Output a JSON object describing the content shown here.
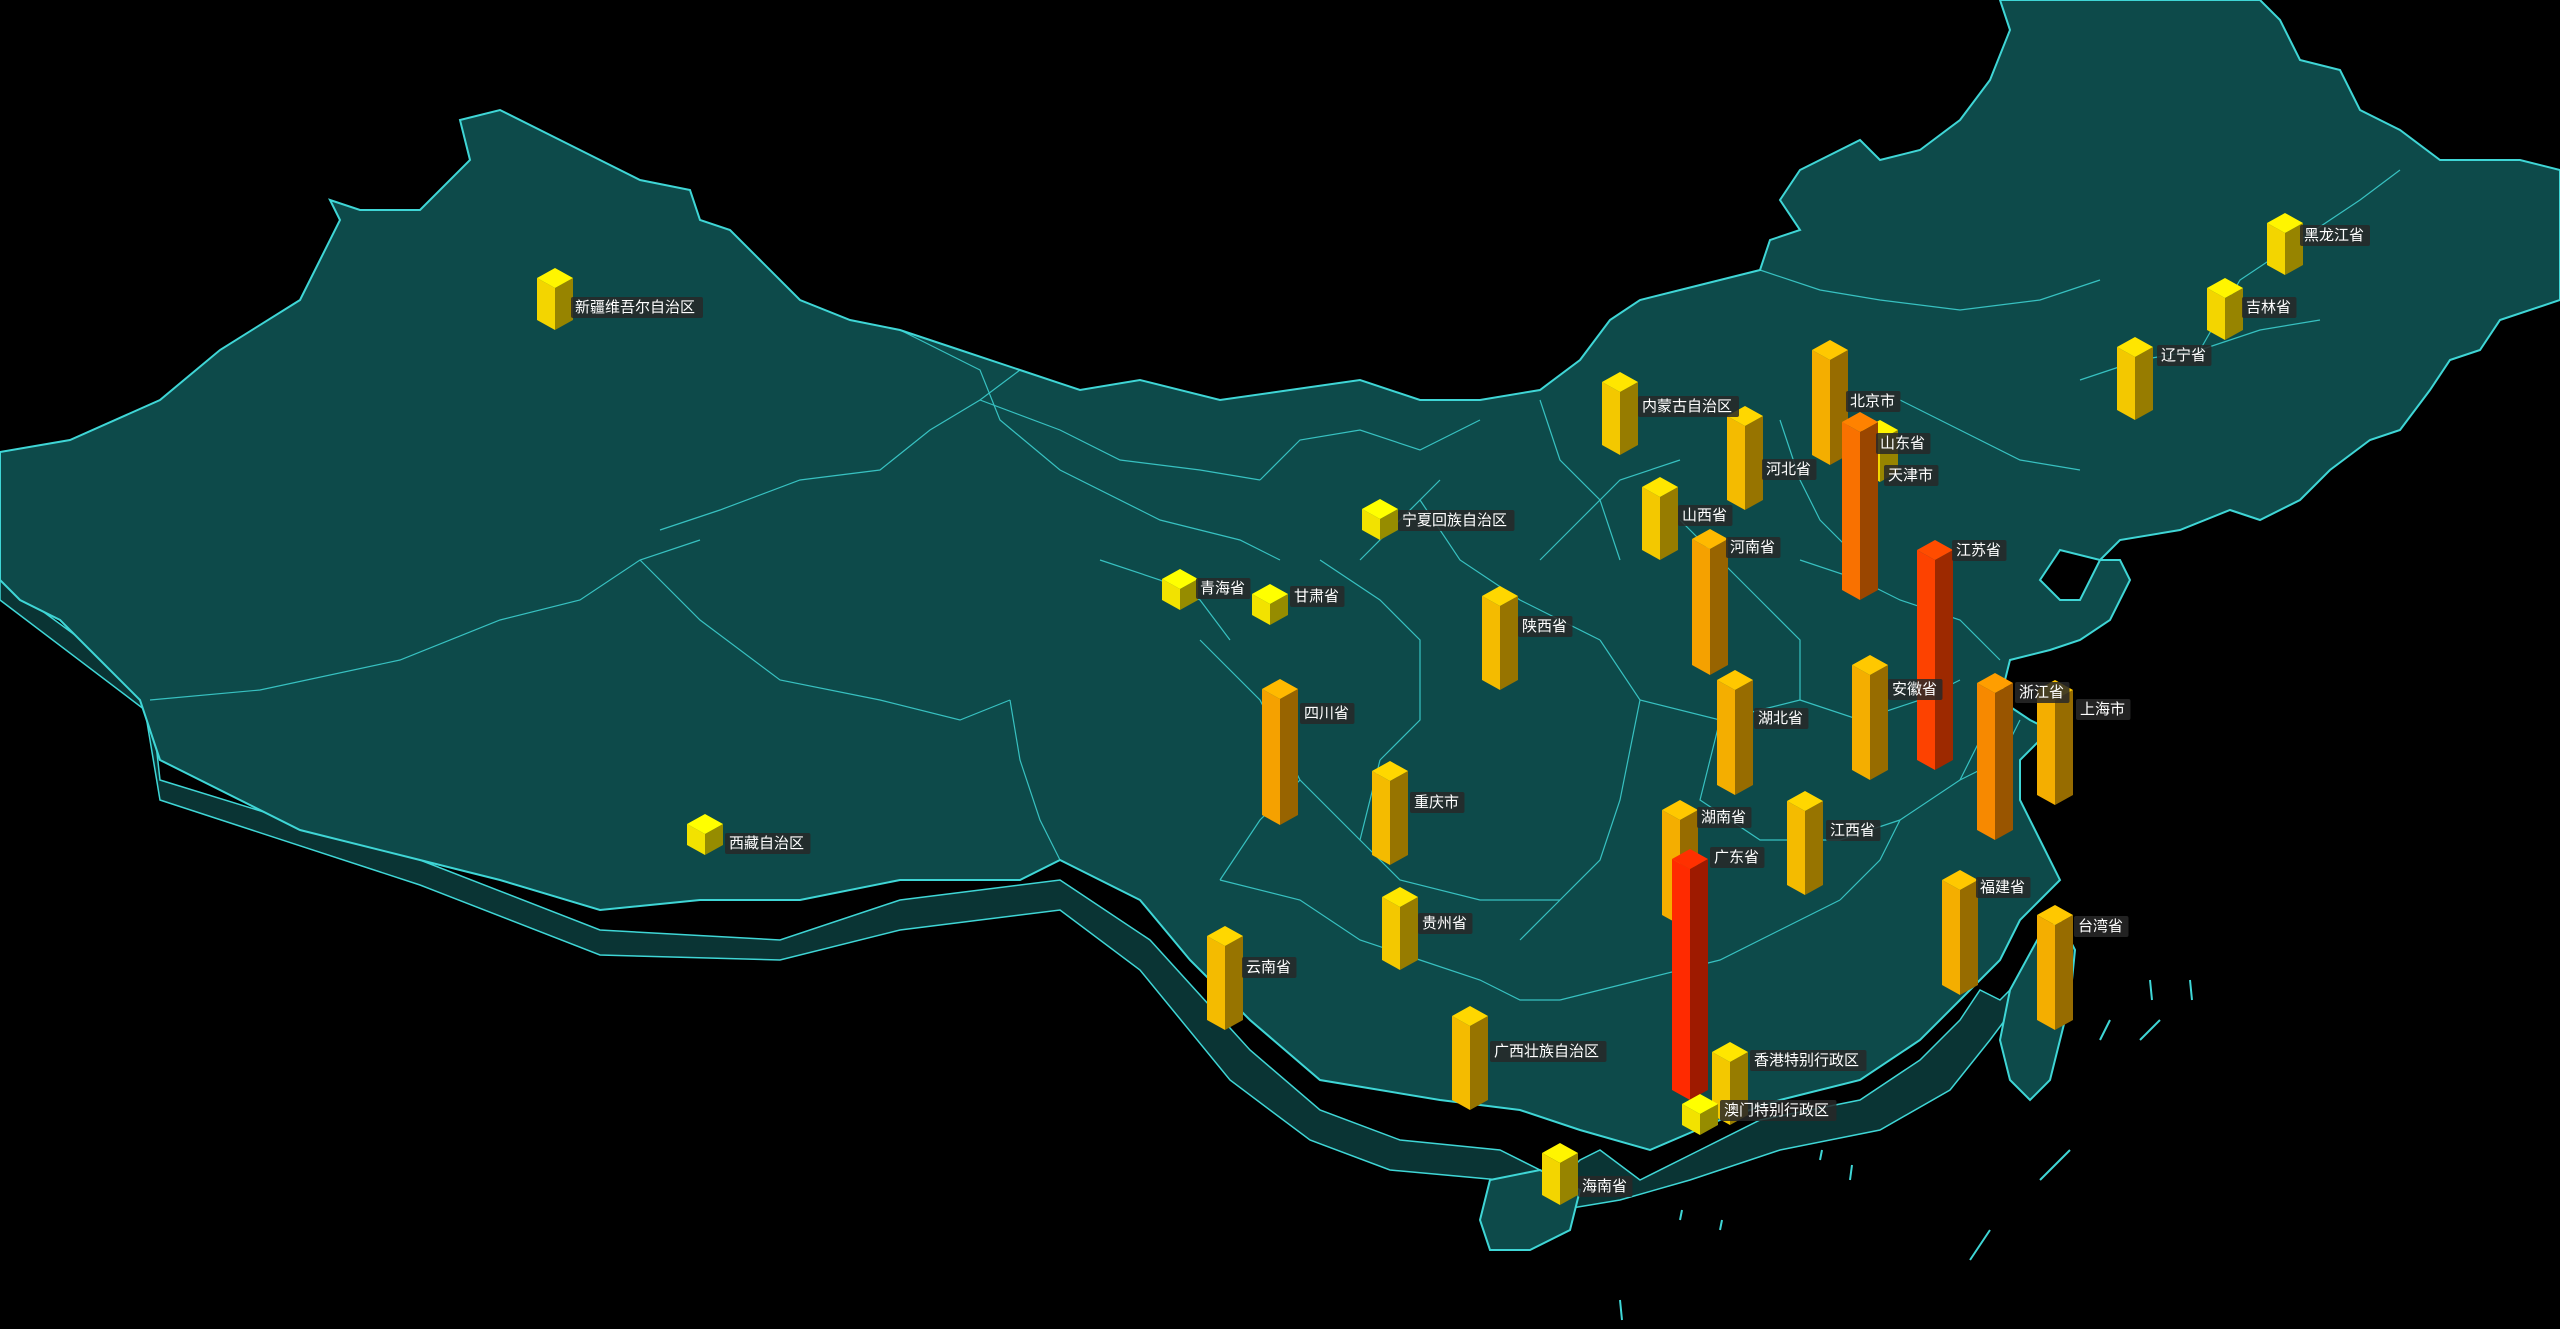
{
  "colors": {
    "background": "#000000",
    "land_fill": "#0d4a4a",
    "land_side": "#0a3434",
    "border": "#3fd6d6",
    "bar_low": "#f2e200",
    "bar_mid": "#f5a100",
    "bar_high": "#ff2a00"
  },
  "chart_data": {
    "type": "bar3d-map",
    "provinces": [
      {
        "name": "新疆维吾尔自治区",
        "value": 2
      },
      {
        "name": "西藏自治区",
        "value": 1
      },
      {
        "name": "青海省",
        "value": 1
      },
      {
        "name": "甘肃省",
        "value": 1
      },
      {
        "name": "宁夏回族自治区",
        "value": 1
      },
      {
        "name": "内蒙古自治区",
        "value": 3
      },
      {
        "name": "黑龙江省",
        "value": 2
      },
      {
        "name": "吉林省",
        "value": 2
      },
      {
        "name": "辽宁省",
        "value": 3
      },
      {
        "name": "北京市",
        "value": 5
      },
      {
        "name": "天津市",
        "value": 2
      },
      {
        "name": "河北省",
        "value": 4
      },
      {
        "name": "山西省",
        "value": 3
      },
      {
        "name": "山东省",
        "value": 8
      },
      {
        "name": "河南省",
        "value": 6
      },
      {
        "name": "陕西省",
        "value": 4
      },
      {
        "name": "四川省",
        "value": 6
      },
      {
        "name": "重庆市",
        "value": 4
      },
      {
        "name": "湖北省",
        "value": 5
      },
      {
        "name": "安徽省",
        "value": 5
      },
      {
        "name": "江苏省",
        "value": 10
      },
      {
        "name": "上海市",
        "value": 5
      },
      {
        "name": "浙江省",
        "value": 7
      },
      {
        "name": "江西省",
        "value": 4
      },
      {
        "name": "湖南省",
        "value": 5
      },
      {
        "name": "贵州省",
        "value": 3
      },
      {
        "name": "云南省",
        "value": 4
      },
      {
        "name": "广西壮族自治区",
        "value": 4
      },
      {
        "name": "广东省",
        "value": 11
      },
      {
        "name": "福建省",
        "value": 5
      },
      {
        "name": "台湾省",
        "value": 5
      },
      {
        "name": "香港特别行政区",
        "value": 3
      },
      {
        "name": "澳门特别行政区",
        "value": 1
      },
      {
        "name": "海南省",
        "value": 2
      }
    ]
  }
}
